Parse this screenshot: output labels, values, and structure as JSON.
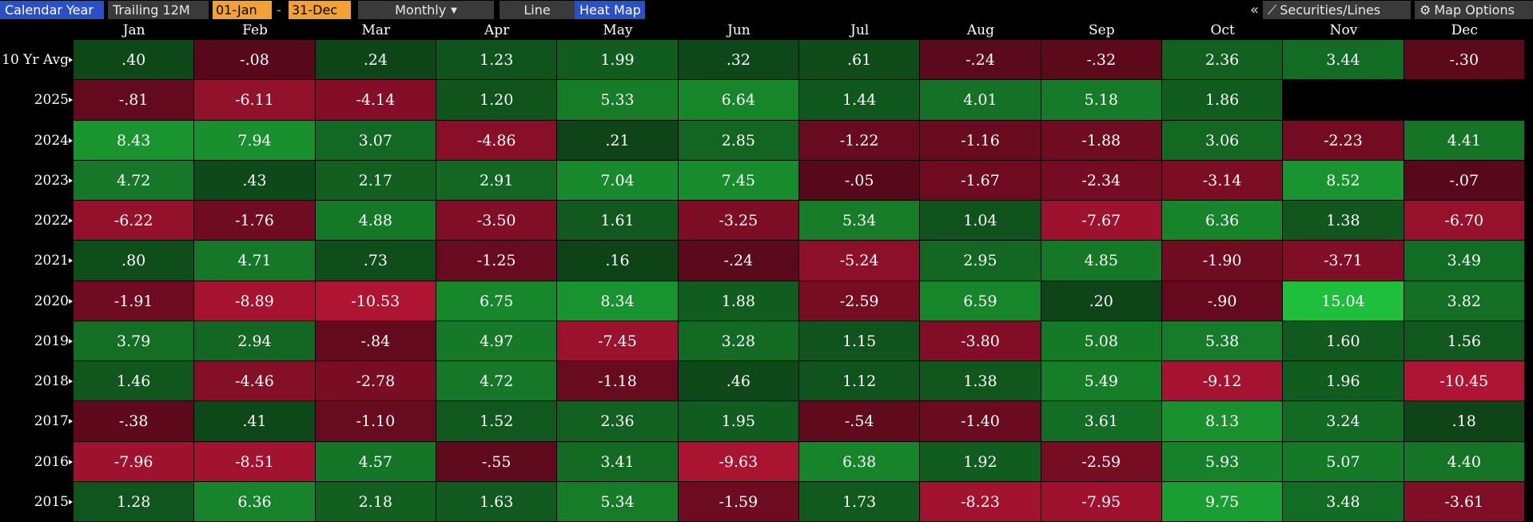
{
  "toolbar": {
    "calendar_year": "Calendar Year",
    "trailing_12m": "Trailing 12M",
    "start_date": "01-Jan",
    "separator": "-",
    "end_date": "31-Dec",
    "frequency": "Monthly",
    "line": "Line",
    "heat_map": "Heat Map",
    "collapse": "«",
    "securities_lines": "Securities/Lines",
    "map_options": "Map Options"
  },
  "months": [
    "Jan",
    "Feb",
    "Mar",
    "Apr",
    "May",
    "Jun",
    "Jul",
    "Aug",
    "Sep",
    "Oct",
    "Nov",
    "Dec"
  ],
  "rows": [
    {
      "label": "10 Yr Avg",
      "values": [
        ".40",
        "-.08",
        ".24",
        "1.23",
        "1.99",
        ".32",
        ".61",
        "-.24",
        "-.32",
        "2.36",
        "3.44",
        "-.30"
      ]
    },
    {
      "label": "2025",
      "values": [
        "-.81",
        "-6.11",
        "-4.14",
        "1.20",
        "5.33",
        "6.64",
        "1.44",
        "4.01",
        "5.18",
        "1.86",
        "",
        ""
      ]
    },
    {
      "label": "2024",
      "values": [
        "8.43",
        "7.94",
        "3.07",
        "-4.86",
        ".21",
        "2.85",
        "-1.22",
        "-1.16",
        "-1.88",
        "3.06",
        "-2.23",
        "4.41"
      ]
    },
    {
      "label": "2023",
      "values": [
        "4.72",
        ".43",
        "2.17",
        "2.91",
        "7.04",
        "7.45",
        "-.05",
        "-1.67",
        "-2.34",
        "-3.14",
        "8.52",
        "-.07"
      ]
    },
    {
      "label": "2022",
      "values": [
        "-6.22",
        "-1.76",
        "4.88",
        "-3.50",
        "1.61",
        "-3.25",
        "5.34",
        "1.04",
        "-7.67",
        "6.36",
        "1.38",
        "-6.70"
      ]
    },
    {
      "label": "2021",
      "values": [
        ".80",
        "4.71",
        ".73",
        "-1.25",
        ".16",
        "-.24",
        "-5.24",
        "2.95",
        "4.85",
        "-1.90",
        "-3.71",
        "3.49"
      ]
    },
    {
      "label": "2020",
      "values": [
        "-1.91",
        "-8.89",
        "-10.53",
        "6.75",
        "8.34",
        "1.88",
        "-2.59",
        "6.59",
        ".20",
        "-.90",
        "15.04",
        "3.82"
      ]
    },
    {
      "label": "2019",
      "values": [
        "3.79",
        "2.94",
        "-.84",
        "4.97",
        "-7.45",
        "3.28",
        "1.15",
        "-3.80",
        "5.08",
        "5.38",
        "1.60",
        "1.56"
      ]
    },
    {
      "label": "2018",
      "values": [
        "1.46",
        "-4.46",
        "-2.78",
        "4.72",
        "-1.18",
        ".46",
        "1.12",
        "1.38",
        "5.49",
        "-9.12",
        "1.96",
        "-10.45"
      ]
    },
    {
      "label": "2017",
      "values": [
        "-.38",
        ".41",
        "-1.10",
        "1.52",
        "2.36",
        "1.95",
        "-.54",
        "-1.40",
        "3.61",
        "8.13",
        "3.24",
        ".18"
      ]
    },
    {
      "label": "2016",
      "values": [
        "-7.96",
        "-8.51",
        "4.57",
        "-.55",
        "3.41",
        "-9.63",
        "6.38",
        "1.92",
        "-2.59",
        "5.93",
        "5.07",
        "4.40"
      ]
    },
    {
      "label": "2015",
      "values": [
        "1.28",
        "6.36",
        "2.18",
        "1.63",
        "5.34",
        "-1.59",
        "1.73",
        "-8.23",
        "-7.95",
        "9.75",
        "3.48",
        "-3.61"
      ]
    }
  ],
  "colors": {
    "background": "#000000",
    "toolbar_blue": "#2a50c6",
    "toolbar_orange": "#f2a134",
    "toolbar_gray": "#3a3a3a",
    "positive_light": "#1fbe3c",
    "positive_dark": "#0d3e16",
    "negative_light": "#c8183a",
    "negative_dark": "#55081a"
  }
}
